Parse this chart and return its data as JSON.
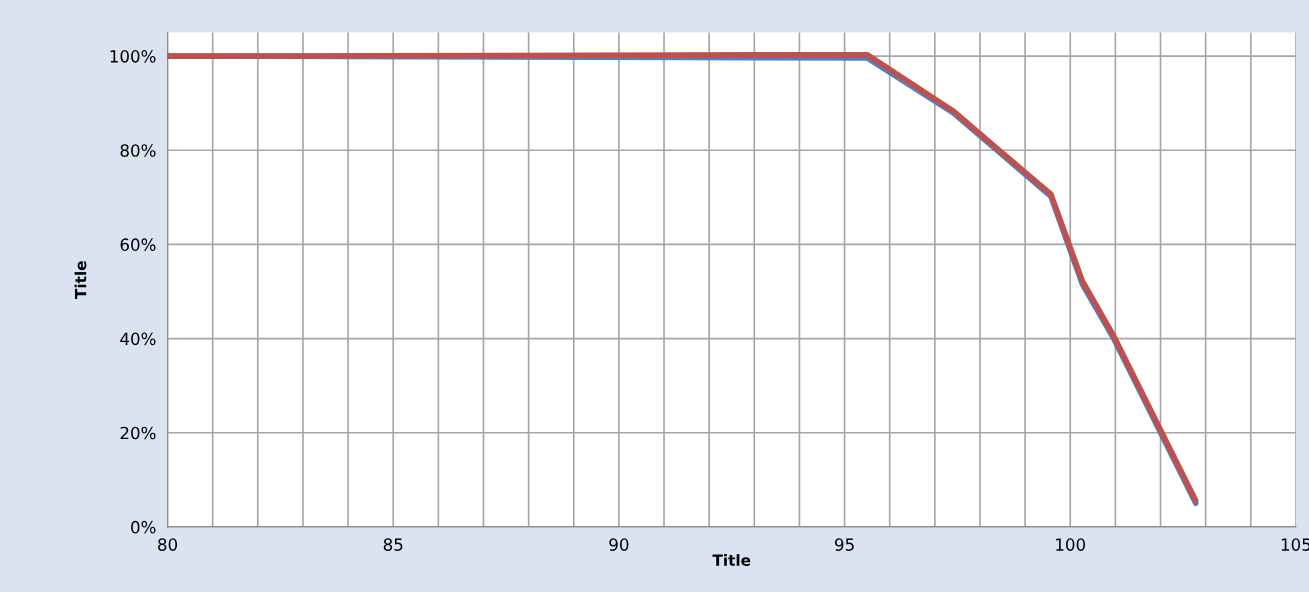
{
  "chart_data": {
    "type": "line",
    "xlabel": "Title",
    "ylabel": "Title",
    "xlim": [
      80,
      105
    ],
    "ylim": [
      0,
      105
    ],
    "xticks": [
      80,
      {
        "value": 81,
        "label": null
      },
      {
        "value": 82,
        "label": null
      },
      {
        "value": 83,
        "label": null
      },
      {
        "value": 84,
        "label": null
      },
      85,
      {
        "value": 86,
        "label": null
      },
      {
        "value": 87,
        "label": null
      },
      {
        "value": 88,
        "label": null
      },
      {
        "value": 89,
        "label": null
      },
      90,
      {
        "value": 91,
        "label": null
      },
      {
        "value": 92,
        "label": null
      },
      {
        "value": 93,
        "label": null
      },
      {
        "value": 94,
        "label": null
      },
      95,
      {
        "value": 96,
        "label": null
      },
      {
        "value": 97,
        "label": null
      },
      {
        "value": 98,
        "label": null
      },
      {
        "value": 99,
        "label": null
      },
      100,
      {
        "value": 101,
        "label": null
      },
      {
        "value": 102,
        "label": null
      },
      {
        "value": 103,
        "label": null
      },
      {
        "value": 104,
        "label": null
      },
      105
    ],
    "yticks": [
      {
        "value": 0,
        "label": "0%"
      },
      {
        "value": 20,
        "label": "20%"
      },
      {
        "value": 40,
        "label": "40%"
      },
      {
        "value": 60,
        "label": "60%"
      },
      {
        "value": 80,
        "label": "80%"
      },
      {
        "value": 100,
        "label": "100%"
      }
    ],
    "grid": true,
    "marker": "none",
    "line_style": "solid",
    "series": [
      {
        "color": "#4f81bd",
        "x": [
          80,
          95.5,
          97.4,
          98.4,
          99.57,
          100.27,
          100.95,
          102.78
        ],
        "values": [
          100,
          99.6,
          88,
          79.8,
          70.2,
          51.5,
          40.2,
          5
        ]
      },
      {
        "color": "#c0504d",
        "x": [
          80,
          95.5,
          97.4,
          98.4,
          99.57,
          100.27,
          100.95,
          102.78
        ],
        "values": [
          100,
          100.3,
          88.4,
          80.2,
          70.7,
          52.2,
          40.8,
          5.6
        ]
      }
    ]
  }
}
